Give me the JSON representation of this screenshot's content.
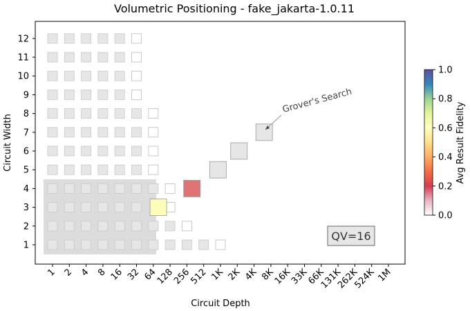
{
  "chart_data": {
    "type": "heatmap",
    "title": "Volumetric Positioning - fake_jakarta-1.0.11",
    "xlabel": "Circuit Depth",
    "ylabel": "Circuit Width",
    "x_ticks": [
      "1",
      "2",
      "4",
      "8",
      "16",
      "32",
      "64",
      "128",
      "256",
      "512",
      "1K",
      "2K",
      "4K",
      "8K",
      "16K",
      "33K",
      "66K",
      "131K",
      "262K",
      "524K",
      "1M"
    ],
    "y_ticks": [
      "1",
      "2",
      "3",
      "4",
      "5",
      "6",
      "7",
      "8",
      "9",
      "10",
      "11",
      "12"
    ],
    "colorbar": {
      "label": "Avg Result Fidelity",
      "min": 0.0,
      "max": 1.0,
      "ticks": [
        "0.0",
        "0.2",
        "0.4",
        "0.6",
        "0.8",
        "1.0"
      ]
    },
    "qv_label": "QV=16",
    "qv_region": {
      "max_depth_index": 6,
      "max_width": 4
    },
    "filled_cells": [
      {
        "w": 12,
        "d": [
          0,
          1,
          2,
          3,
          4
        ]
      },
      {
        "w": 11,
        "d": [
          0,
          1,
          2,
          3,
          4
        ]
      },
      {
        "w": 10,
        "d": [
          0,
          1,
          2,
          3,
          4
        ]
      },
      {
        "w": 9,
        "d": [
          0,
          1,
          2,
          3,
          4
        ]
      },
      {
        "w": 8,
        "d": [
          0,
          1,
          2,
          3,
          4,
          5
        ]
      },
      {
        "w": 7,
        "d": [
          0,
          1,
          2,
          3,
          4,
          5
        ]
      },
      {
        "w": 6,
        "d": [
          0,
          1,
          2,
          3,
          4,
          5
        ]
      },
      {
        "w": 5,
        "d": [
          0,
          1,
          2,
          3,
          4,
          5
        ]
      },
      {
        "w": 4,
        "d": [
          0,
          1,
          2,
          3,
          4,
          5,
          6
        ]
      },
      {
        "w": 3,
        "d": [
          0,
          1,
          2,
          3,
          4,
          5
        ]
      },
      {
        "w": 2,
        "d": [
          0,
          1,
          2,
          3,
          4,
          5,
          6,
          7
        ]
      },
      {
        "w": 1,
        "d": [
          0,
          1,
          2,
          3,
          4,
          5,
          6,
          7,
          8,
          9
        ]
      }
    ],
    "empty_cells": [
      {
        "w": 12,
        "d": [
          5
        ]
      },
      {
        "w": 11,
        "d": [
          5
        ]
      },
      {
        "w": 10,
        "d": [
          5
        ]
      },
      {
        "w": 9,
        "d": [
          5
        ]
      },
      {
        "w": 8,
        "d": [
          6
        ]
      },
      {
        "w": 7,
        "d": [
          6
        ]
      },
      {
        "w": 6,
        "d": [
          6
        ]
      },
      {
        "w": 5,
        "d": [
          6
        ]
      },
      {
        "w": 4,
        "d": [
          7
        ]
      },
      {
        "w": 3,
        "d": [
          7
        ]
      },
      {
        "w": 2,
        "d": [
          8
        ]
      },
      {
        "w": 1,
        "d": [
          10
        ]
      }
    ],
    "app_points": [
      {
        "w": 3,
        "d": 6.3,
        "fidelity": 0.45,
        "color": "#fbfdb8"
      },
      {
        "w": 4,
        "d": 8.3,
        "fidelity": 0.1,
        "color": "#e07474"
      },
      {
        "w": 5,
        "d": 9.85,
        "fidelity": 0.0,
        "color": "#e6e6e6"
      },
      {
        "w": 6,
        "d": 11.1,
        "fidelity": 0.0,
        "color": "#e6e6e6"
      },
      {
        "w": 7,
        "d": 12.6,
        "fidelity": 0.0,
        "color": "#e6e6e6"
      }
    ],
    "annotation": {
      "text": "Grover's Search",
      "target_w": 7,
      "target_d": 12.6
    }
  }
}
